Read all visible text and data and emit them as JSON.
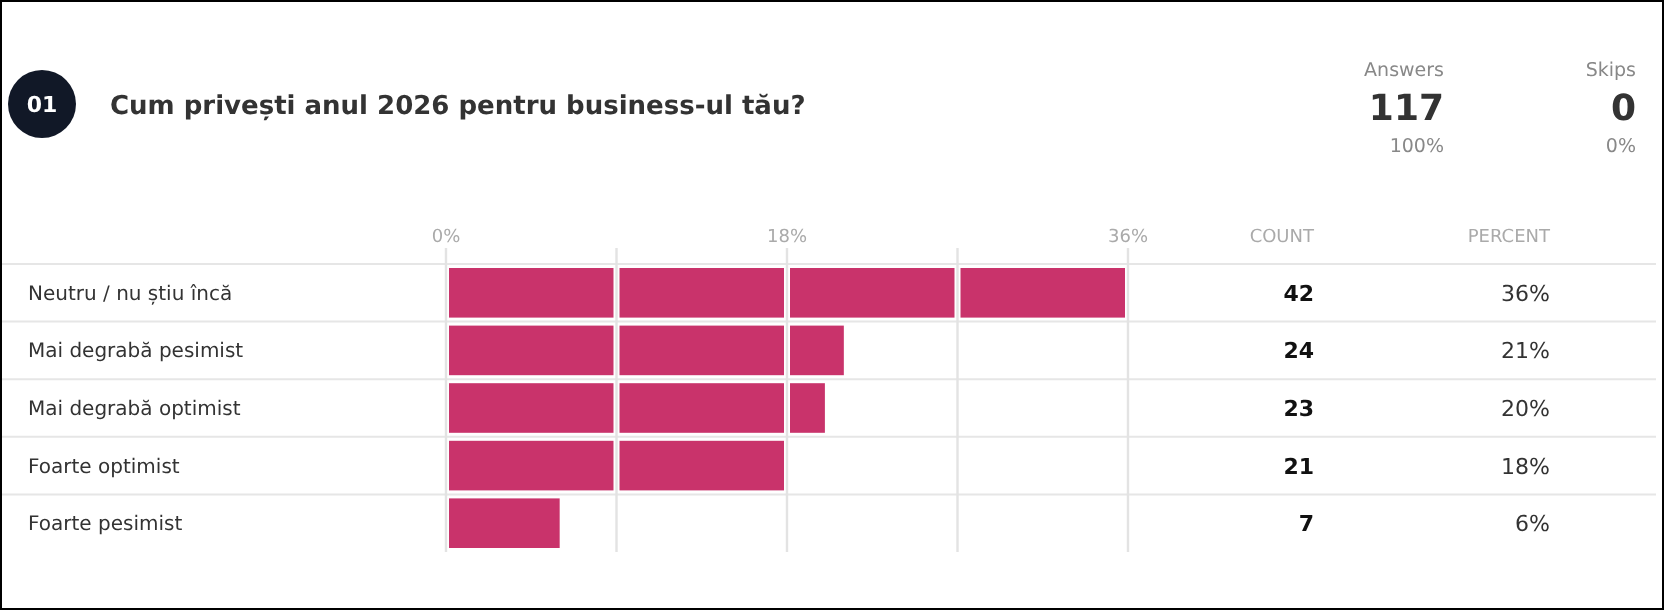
{
  "chart_data": {
    "type": "bar",
    "orientation": "horizontal",
    "title": "Cum privești anul 2026 pentru business-ul tău?",
    "categories": [
      "Neutru / nu știu încă",
      "Mai degrabă pesimist",
      "Mai degrabă optimist",
      "Foarte optimist",
      "Foarte pesimist"
    ],
    "values": [
      36,
      21,
      20,
      18,
      6
    ],
    "color": "#c9336b",
    "value_labels": [
      "36%",
      "21%",
      "20%",
      "18%",
      "6%"
    ],
    "x2lim": [
      0,
      36
    ],
    "x2ticks": [
      {
        "value": 0,
        "label": "0%"
      },
      {
        "value": 9,
        "label": null
      },
      {
        "value": 18,
        "label": "18%"
      },
      {
        "value": 27,
        "label": null
      },
      {
        "value": 36,
        "label": "36%"
      }
    ],
    "grid": "x",
    "annotations": [
      "01",
      "Answers",
      "117",
      "100%",
      "Skips",
      "0",
      "0%",
      "COUNT",
      "PERCENT",
      "42",
      "24",
      "23",
      "21",
      "7"
    ]
  }
}
